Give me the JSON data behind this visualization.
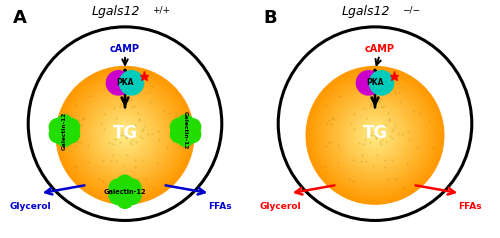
{
  "panel_A": {
    "title": "Lgals12",
    "title_superscript": "+/+",
    "camp_color": "#0000cc",
    "pka_arrow_color": "#000000",
    "galectin_color": "#22dd00",
    "pka_magenta_color": "#cc00cc",
    "pka_cyan_color": "#00ccbb",
    "star_color": "#ff0000",
    "arrow_color": "#0000cc",
    "tg_color": "#ffffff",
    "has_galectin": true
  },
  "panel_B": {
    "title": "Lgals12",
    "title_superscript": "−/−",
    "camp_color": "#ff0000",
    "pka_arrow_color": "#000000",
    "galectin_color": "#22dd00",
    "pka_magenta_color": "#cc00cc",
    "pka_cyan_color": "#00ccbb",
    "star_color": "#ff0000",
    "arrow_color": "#ff0000",
    "tg_color": "#ffffff",
    "has_galectin": false
  },
  "labels": {
    "TG": "TG",
    "cAMP": "cAMP",
    "PKA": "PKA",
    "glycerol": "Glycerol",
    "ffas": "FFAs",
    "galectin": "Galectin-12"
  },
  "bg_color": "#ffffff",
  "figsize": [
    5.0,
    2.38
  ],
  "dpi": 100
}
